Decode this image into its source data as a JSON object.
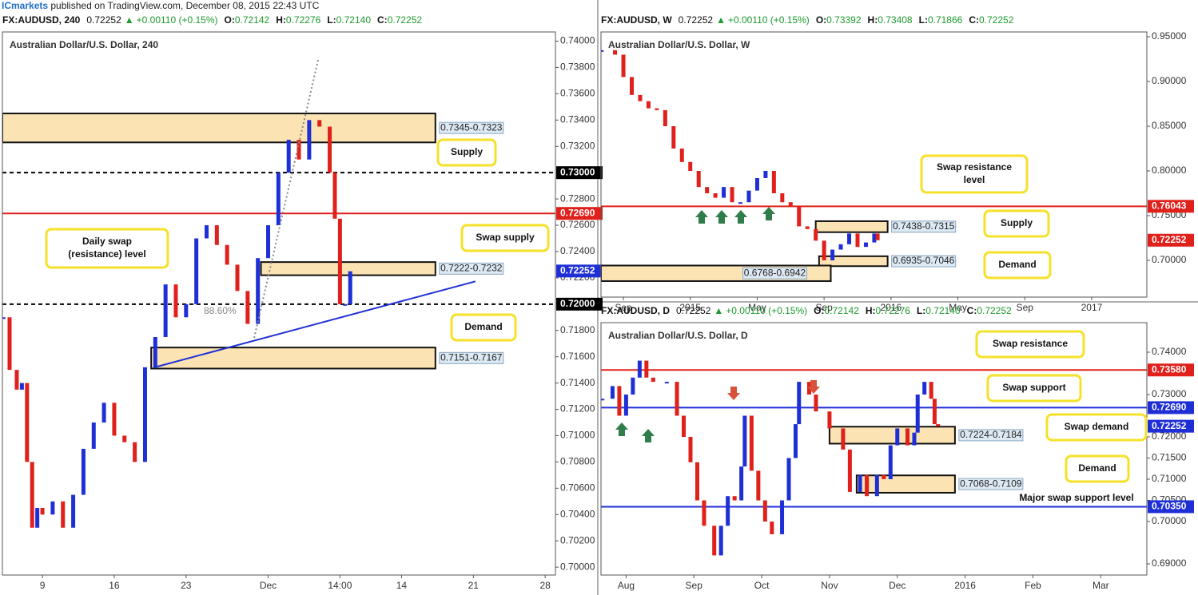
{
  "header": {
    "author": "ICmarkets",
    "text": " published on TradingView.com, December 08, 2015 22:43 UTC"
  },
  "chart_data": [
    {
      "type": "candlestick",
      "title": "Australian Dollar/U.S. Dollar, 240",
      "info": {
        "symbol": "FX:AUDUSD, 240",
        "last": "0.72252",
        "direction": "▲",
        "change": "+0.00110 (+0.15%)",
        "ohlc": [
          {
            "k": "O:",
            "v": "0.72142"
          },
          {
            "k": "H:",
            "v": "0.72276"
          },
          {
            "k": "L:",
            "v": "0.72140"
          },
          {
            "k": "C:",
            "v": "0.72252"
          }
        ]
      },
      "x": [
        5.2,
        5.8,
        6.5,
        7,
        7.5,
        8,
        8.5,
        9,
        10,
        11,
        12,
        13,
        14,
        15,
        16,
        17,
        18,
        19,
        20,
        21,
        22,
        23,
        24,
        25,
        26,
        27,
        28,
        29,
        30,
        31,
        32,
        33,
        34,
        35,
        36,
        37,
        37.5,
        38,
        38.5,
        39
      ],
      "values": [
        0.719,
        0.715,
        0.7135,
        0.714,
        0.708,
        0.703,
        0.7045,
        0.704,
        0.705,
        0.703,
        0.7055,
        0.709,
        0.711,
        0.7125,
        0.71,
        0.7095,
        0.708,
        0.7152,
        0.7175,
        0.7215,
        0.719,
        0.72,
        0.725,
        0.726,
        0.7245,
        0.723,
        0.721,
        0.7185,
        0.7235,
        0.726,
        0.73,
        0.7325,
        0.731,
        0.734,
        0.7335,
        0.73,
        0.7265,
        0.72,
        0.72,
        0.7225
      ],
      "xlim": [
        5.1,
        59
      ],
      "xticks": [
        9,
        16,
        23,
        {
          "value": 31,
          "label": "Dec"
        },
        {
          "value": 38,
          "label": "14:00"
        },
        {
          "value": 44,
          "label": "14"
        },
        {
          "value": 51,
          "label": "21"
        },
        {
          "value": 58,
          "label": "28"
        }
      ],
      "ylim": [
        0.6994,
        0.7407
      ],
      "yticks": [
        {
          "value": 0.7,
          "label": "0.70000"
        },
        {
          "value": 0.702,
          "label": "0.70200"
        },
        {
          "value": 0.704,
          "label": "0.70400"
        },
        {
          "value": 0.706,
          "label": "0.70600"
        },
        {
          "value": 0.708,
          "label": "0.70800"
        },
        {
          "value": 0.71,
          "label": "0.71000"
        },
        {
          "value": 0.712,
          "label": "0.71200"
        },
        {
          "value": 0.714,
          "label": "0.71400"
        },
        {
          "value": 0.716,
          "label": "0.71600"
        },
        {
          "value": 0.718,
          "label": "0.71800"
        },
        {
          "value": 0.722,
          "label": "0.72200"
        },
        {
          "value": 0.724,
          "label": "0.72400"
        },
        {
          "value": 0.726,
          "label": "0.72600"
        },
        {
          "value": 0.728,
          "label": "0.72800"
        },
        {
          "value": 0.732,
          "label": "0.73200"
        },
        {
          "value": 0.734,
          "label": "0.73400"
        },
        {
          "value": 0.736,
          "label": "0.73600"
        },
        {
          "value": 0.738,
          "label": "0.73800"
        },
        {
          "value": 0.74,
          "label": "0.74000"
        }
      ],
      "levels": [
        {
          "value": 0.73,
          "label": "0.73000",
          "color": "#000000",
          "style": "dashed",
          "line": true
        },
        {
          "value": 0.7269,
          "label": "0.72690",
          "color": "#e0201b",
          "style": "solid",
          "line": true
        },
        {
          "value": 0.72252,
          "label": "0.72252",
          "color": "#1f2fd6",
          "style": "solid",
          "line": false
        },
        {
          "value": 0.72,
          "label": "0.72000",
          "color": "#000000",
          "style": "dashed",
          "line": true
        }
      ],
      "zones": [
        {
          "label": "0.7345-0.7323",
          "top": 0.7345,
          "bottom": 0.7323,
          "x0": 5.1,
          "x1": 47.3
        },
        {
          "label": "0.7222-0.7232",
          "top": 0.7232,
          "bottom": 0.7222,
          "x0": 30.3,
          "x1": 47.3
        },
        {
          "label": "0.7151-0.7167",
          "top": 0.7167,
          "bottom": 0.7151,
          "x0": 19.6,
          "x1": 47.3
        }
      ],
      "trendline": {
        "x": [
          19.8,
          51.2
        ],
        "y": [
          0.71517,
          0.72173
        ]
      },
      "fib_label": "88.60%",
      "callouts": [
        {
          "lines": [
            "Supply"
          ]
        },
        {
          "lines": [
            "Swap supply"
          ]
        },
        {
          "lines": [
            "Demand"
          ]
        },
        {
          "lines": [
            "Daily swap",
            "(resistance) level"
          ]
        }
      ]
    },
    {
      "type": "candlestick",
      "title": "Australian Dollar/U.S. Dollar, W",
      "info": {
        "symbol": "FX:AUDUSD, W",
        "last": "0.72252",
        "direction": "▲",
        "change": "+0.00110 (+0.15%)",
        "ohlc": [
          {
            "k": "O:",
            "v": "0.73392"
          },
          {
            "k": "H:",
            "v": "0.73408"
          },
          {
            "k": "L:",
            "v": "0.71866"
          },
          {
            "k": "C:",
            "v": "0.72252"
          }
        ]
      },
      "x": [
        -1.3,
        -0.5,
        0,
        0.5,
        1,
        1.5,
        2,
        2.5,
        3,
        3.5,
        4,
        4.5,
        5,
        5.5,
        6,
        6.5,
        7,
        7.5,
        8,
        8.5,
        9,
        9.5,
        10,
        10.5,
        11,
        11.5,
        12,
        12.5,
        13,
        13.5,
        14,
        14.5,
        15,
        15.2
      ],
      "values": [
        0.935,
        0.93,
        0.905,
        0.885,
        0.878,
        0.87,
        0.868,
        0.85,
        0.825,
        0.81,
        0.8,
        0.782,
        0.775,
        0.77,
        0.782,
        0.765,
        0.765,
        0.778,
        0.792,
        0.8,
        0.775,
        0.765,
        0.76,
        0.738,
        0.735,
        0.722,
        0.7,
        0.712,
        0.718,
        0.73,
        0.715,
        0.72,
        0.73,
        0.7225
      ],
      "xlim": [
        -1.34,
        31.3
      ],
      "xticks": [
        {
          "value": 0,
          "label": "Sep"
        },
        {
          "value": 4,
          "label": "2015"
        },
        {
          "value": 8,
          "label": "May"
        },
        {
          "value": 12,
          "label": "Sep"
        },
        {
          "value": 16,
          "label": "2016"
        },
        {
          "value": 20,
          "label": "May"
        },
        {
          "value": 24,
          "label": "Sep"
        },
        {
          "value": 28,
          "label": "2017"
        }
      ],
      "ylim": [
        0.6589,
        0.9554
      ],
      "yticks": [
        {
          "value": 0.7,
          "label": "0.70000"
        },
        {
          "value": 0.75,
          "label": "0.75000"
        },
        {
          "value": 0.8,
          "label": "0.80000"
        },
        {
          "value": 0.85,
          "label": "0.85000"
        },
        {
          "value": 0.9,
          "label": "0.90000"
        },
        {
          "value": 0.95,
          "label": "0.95000"
        }
      ],
      "levels": [
        {
          "value": 0.76043,
          "label": "0.76043",
          "color": "#e0201b",
          "style": "solid",
          "line": true
        },
        {
          "value": 0.72252,
          "label": "0.72252",
          "color": "#e0201b",
          "style": "solid",
          "line": false
        }
      ],
      "zones": [
        {
          "label": "0.7438-0.7315",
          "top": 0.7438,
          "bottom": 0.7315,
          "x0": 11.5,
          "x1": 15.8
        },
        {
          "label": "0.6935-0.7046",
          "top": 0.7046,
          "bottom": 0.6935,
          "x0": 11.7,
          "x1": 15.8
        },
        {
          "label": "0.6768-0.6942",
          "top": 0.6942,
          "bottom": 0.6768,
          "x0": -1.34,
          "x1": 12.4
        }
      ],
      "callouts": [
        {
          "lines": [
            "Swap resistance",
            "level"
          ]
        },
        {
          "lines": [
            "Supply"
          ]
        },
        {
          "lines": [
            "Demand"
          ]
        }
      ]
    },
    {
      "type": "candlestick",
      "title": "Australian Dollar/U.S. Dollar, D",
      "info": {
        "symbol": "FX:AUDUSD, D",
        "last": "0.72252",
        "direction": "▲",
        "change": "+0.00110 (+0.15%)",
        "ohlc": [
          {
            "k": "O:",
            "v": "0.72142"
          },
          {
            "k": "H:",
            "v": "0.72276"
          },
          {
            "k": "L:",
            "v": "0.72140"
          },
          {
            "k": "C:",
            "v": "0.72252"
          }
        ]
      },
      "x": [
        -0.35,
        -0.2,
        -0.1,
        0,
        0.1,
        0.2,
        0.3,
        0.4,
        0.6,
        0.75,
        0.85,
        0.95,
        1.05,
        1.15,
        1.3,
        1.4,
        1.5,
        1.6,
        1.7,
        1.75,
        1.85,
        1.95,
        2.05,
        2.15,
        2.3,
        2.4,
        2.5,
        2.55,
        2.7,
        2.8,
        3.0,
        3.2,
        3.3,
        3.45,
        3.55,
        3.7,
        3.8,
        3.9,
        4.0,
        4.15,
        4.25,
        4.3,
        4.4,
        4.5,
        4.55,
        4.6
      ],
      "values": [
        0.729,
        0.732,
        0.725,
        0.73,
        0.734,
        0.738,
        0.734,
        0.733,
        0.733,
        0.725,
        0.72,
        0.714,
        0.705,
        0.699,
        0.692,
        0.699,
        0.706,
        0.705,
        0.713,
        0.725,
        0.712,
        0.705,
        0.7,
        0.697,
        0.705,
        0.715,
        0.723,
        0.733,
        0.73,
        0.726,
        0.722,
        0.717,
        0.707,
        0.711,
        0.706,
        0.711,
        0.71,
        0.718,
        0.722,
        0.718,
        0.721,
        0.73,
        0.733,
        0.729,
        0.723,
        0.7225
      ],
      "xlim": [
        -0.37,
        7.68
      ],
      "xticks": [
        {
          "value": 0,
          "label": "Aug"
        },
        {
          "value": 1,
          "label": "Sep"
        },
        {
          "value": 2,
          "label": "Oct"
        },
        {
          "value": 3,
          "label": "Nov"
        },
        {
          "value": 4,
          "label": "Dec"
        },
        {
          "value": 5,
          "label": "2016"
        },
        {
          "value": 6,
          "label": "Feb"
        },
        {
          "value": 7,
          "label": "Mar"
        }
      ],
      "ylim": [
        0.68736,
        0.74698
      ],
      "yticks": [
        {
          "value": 0.69,
          "label": "0.69000"
        },
        {
          "value": 0.7,
          "label": "0.70000"
        },
        {
          "value": 0.705,
          "label": "0.70500"
        },
        {
          "value": 0.71,
          "label": "0.71000"
        },
        {
          "value": 0.715,
          "label": "0.71500"
        },
        {
          "value": 0.72,
          "label": "0.72000"
        },
        {
          "value": 0.73,
          "label": "0.73000"
        },
        {
          "value": 0.74,
          "label": "0.74000"
        }
      ],
      "levels": [
        {
          "value": 0.7358,
          "label": "0.73580",
          "color": "#e0201b",
          "style": "solid",
          "line": true
        },
        {
          "value": 0.7269,
          "label": "0.72690",
          "color": "#1f2fd6",
          "style": "solid",
          "line": true
        },
        {
          "value": 0.72252,
          "label": "0.72252",
          "color": "#1f2fd6",
          "style": "solid",
          "line": false
        },
        {
          "value": 0.7035,
          "label": "0.70350",
          "color": "#1f2fd6",
          "style": "solid",
          "line": true
        }
      ],
      "zones": [
        {
          "label": "0.7224-0.7184",
          "top": 0.7224,
          "bottom": 0.7184,
          "x0": 3.0,
          "x1": 4.85
        },
        {
          "label": "0.7068-0.7109",
          "top": 0.7109,
          "bottom": 0.7068,
          "x0": 3.4,
          "x1": 4.85
        }
      ],
      "callouts": [
        {
          "lines": [
            "Swap resistance"
          ]
        },
        {
          "lines": [
            "Swap support"
          ]
        },
        {
          "lines": [
            "Swap demand"
          ]
        },
        {
          "lines": [
            "Demand"
          ]
        },
        {
          "lines": [
            "Major swap support level"
          ]
        }
      ]
    }
  ]
}
